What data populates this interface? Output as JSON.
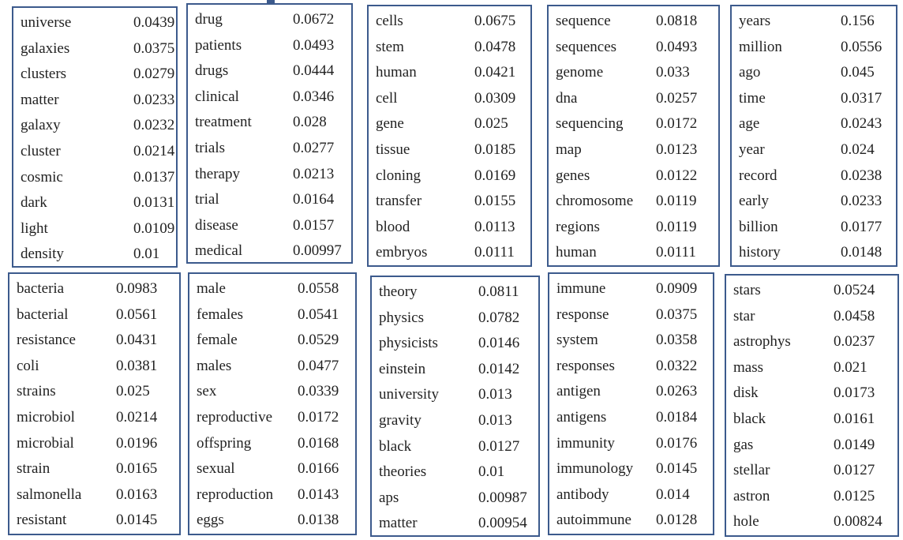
{
  "colors": {
    "border": "#3c5a8c",
    "text": "#222222"
  },
  "topics": [
    {
      "words": [
        {
          "word": "universe",
          "prob": "0.0439"
        },
        {
          "word": "galaxies",
          "prob": "0.0375"
        },
        {
          "word": "clusters",
          "prob": "0.0279"
        },
        {
          "word": "matter",
          "prob": "0.0233"
        },
        {
          "word": "galaxy",
          "prob": "0.0232"
        },
        {
          "word": "cluster",
          "prob": "0.0214"
        },
        {
          "word": "cosmic",
          "prob": "0.0137"
        },
        {
          "word": "dark",
          "prob": "0.0131"
        },
        {
          "word": "light",
          "prob": "0.0109"
        },
        {
          "word": "density",
          "prob": "0.01"
        }
      ]
    },
    {
      "words": [
        {
          "word": "drug",
          "prob": "0.0672"
        },
        {
          "word": "patients",
          "prob": "0.0493"
        },
        {
          "word": "drugs",
          "prob": "0.0444"
        },
        {
          "word": "clinical",
          "prob": "0.0346"
        },
        {
          "word": "treatment",
          "prob": "0.028"
        },
        {
          "word": "trials",
          "prob": "0.0277"
        },
        {
          "word": "therapy",
          "prob": "0.0213"
        },
        {
          "word": "trial",
          "prob": "0.0164"
        },
        {
          "word": "disease",
          "prob": "0.0157"
        },
        {
          "word": "medical",
          "prob": "0.00997"
        }
      ]
    },
    {
      "words": [
        {
          "word": "cells",
          "prob": "0.0675"
        },
        {
          "word": "stem",
          "prob": "0.0478"
        },
        {
          "word": "human",
          "prob": "0.0421"
        },
        {
          "word": "cell",
          "prob": "0.0309"
        },
        {
          "word": "gene",
          "prob": "0.025"
        },
        {
          "word": "tissue",
          "prob": "0.0185"
        },
        {
          "word": "cloning",
          "prob": "0.0169"
        },
        {
          "word": "transfer",
          "prob": "0.0155"
        },
        {
          "word": "blood",
          "prob": "0.0113"
        },
        {
          "word": "embryos",
          "prob": "0.0111"
        }
      ]
    },
    {
      "words": [
        {
          "word": "sequence",
          "prob": "0.0818"
        },
        {
          "word": "sequences",
          "prob": "0.0493"
        },
        {
          "word": "genome",
          "prob": "0.033"
        },
        {
          "word": "dna",
          "prob": "0.0257"
        },
        {
          "word": "sequencing",
          "prob": "0.0172"
        },
        {
          "word": "map",
          "prob": "0.0123"
        },
        {
          "word": "genes",
          "prob": "0.0122"
        },
        {
          "word": "chromosome",
          "prob": "0.0119"
        },
        {
          "word": "regions",
          "prob": "0.0119"
        },
        {
          "word": "human",
          "prob": "0.0111"
        }
      ]
    },
    {
      "words": [
        {
          "word": "years",
          "prob": "0.156"
        },
        {
          "word": "million",
          "prob": "0.0556"
        },
        {
          "word": "ago",
          "prob": "0.045"
        },
        {
          "word": "time",
          "prob": "0.0317"
        },
        {
          "word": "age",
          "prob": "0.0243"
        },
        {
          "word": "year",
          "prob": "0.024"
        },
        {
          "word": "record",
          "prob": "0.0238"
        },
        {
          "word": "early",
          "prob": "0.0233"
        },
        {
          "word": "billion",
          "prob": "0.0177"
        },
        {
          "word": "history",
          "prob": "0.0148"
        }
      ]
    },
    {
      "words": [
        {
          "word": "bacteria",
          "prob": "0.0983"
        },
        {
          "word": "bacterial",
          "prob": "0.0561"
        },
        {
          "word": "resistance",
          "prob": "0.0431"
        },
        {
          "word": "coli",
          "prob": "0.0381"
        },
        {
          "word": "strains",
          "prob": "0.025"
        },
        {
          "word": "microbiol",
          "prob": "0.0214"
        },
        {
          "word": "microbial",
          "prob": "0.0196"
        },
        {
          "word": "strain",
          "prob": "0.0165"
        },
        {
          "word": "salmonella",
          "prob": "0.0163"
        },
        {
          "word": "resistant",
          "prob": "0.0145"
        }
      ]
    },
    {
      "words": [
        {
          "word": "male",
          "prob": "0.0558"
        },
        {
          "word": "females",
          "prob": "0.0541"
        },
        {
          "word": "female",
          "prob": "0.0529"
        },
        {
          "word": "males",
          "prob": "0.0477"
        },
        {
          "word": "sex",
          "prob": "0.0339"
        },
        {
          "word": "reproductive",
          "prob": "0.0172"
        },
        {
          "word": "offspring",
          "prob": "0.0168"
        },
        {
          "word": "sexual",
          "prob": "0.0166"
        },
        {
          "word": "reproduction",
          "prob": "0.0143"
        },
        {
          "word": "eggs",
          "prob": "0.0138"
        }
      ]
    },
    {
      "words": [
        {
          "word": "theory",
          "prob": "0.0811"
        },
        {
          "word": "physics",
          "prob": "0.0782"
        },
        {
          "word": "physicists",
          "prob": "0.0146"
        },
        {
          "word": "einstein",
          "prob": "0.0142"
        },
        {
          "word": "university",
          "prob": "0.013"
        },
        {
          "word": "gravity",
          "prob": "0.013"
        },
        {
          "word": "black",
          "prob": "0.0127"
        },
        {
          "word": "theories",
          "prob": "0.01"
        },
        {
          "word": "aps",
          "prob": "0.00987"
        },
        {
          "word": "matter",
          "prob": "0.00954"
        }
      ]
    },
    {
      "words": [
        {
          "word": "immune",
          "prob": "0.0909"
        },
        {
          "word": "response",
          "prob": "0.0375"
        },
        {
          "word": "system",
          "prob": "0.0358"
        },
        {
          "word": "responses",
          "prob": "0.0322"
        },
        {
          "word": "antigen",
          "prob": "0.0263"
        },
        {
          "word": "antigens",
          "prob": "0.0184"
        },
        {
          "word": "immunity",
          "prob": "0.0176"
        },
        {
          "word": "immunology",
          "prob": "0.0145"
        },
        {
          "word": "antibody",
          "prob": "0.014"
        },
        {
          "word": "autoimmune",
          "prob": "0.0128"
        }
      ]
    },
    {
      "words": [
        {
          "word": "stars",
          "prob": "0.0524"
        },
        {
          "word": "star",
          "prob": "0.0458"
        },
        {
          "word": "astrophys",
          "prob": "0.0237"
        },
        {
          "word": "mass",
          "prob": "0.021"
        },
        {
          "word": "disk",
          "prob": "0.0173"
        },
        {
          "word": "black",
          "prob": "0.0161"
        },
        {
          "word": "gas",
          "prob": "0.0149"
        },
        {
          "word": "stellar",
          "prob": "0.0127"
        },
        {
          "word": "astron",
          "prob": "0.0125"
        },
        {
          "word": "hole",
          "prob": "0.00824"
        }
      ]
    }
  ]
}
